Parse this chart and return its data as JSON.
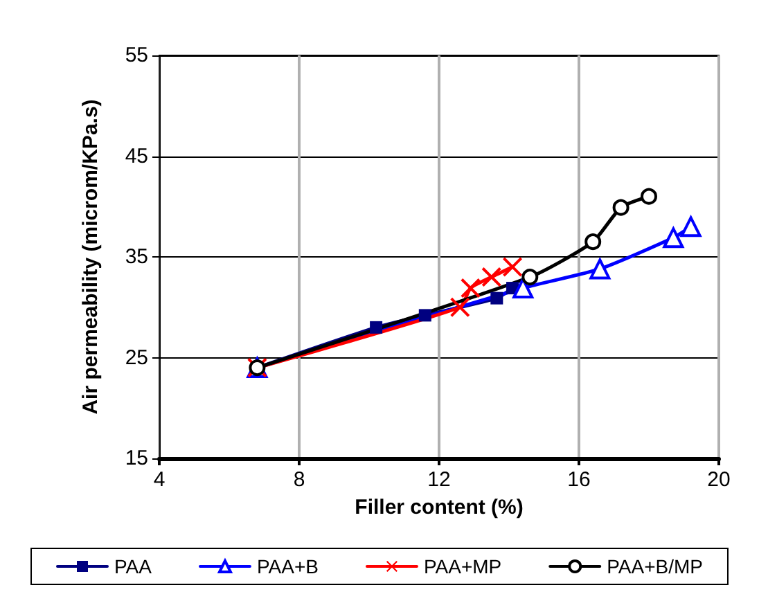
{
  "chart_data": {
    "type": "line",
    "xlabel": "Filler content (%)",
    "ylabel": "Air permeability (microm/KPa.s)",
    "xlim": [
      4,
      20
    ],
    "xticks": [
      4,
      8,
      12,
      16,
      20
    ],
    "ylim": [
      15,
      55
    ],
    "yticks": [
      15,
      25,
      35,
      45,
      55
    ],
    "grid": true,
    "legend": "bottom",
    "series": [
      {
        "name": "PAA",
        "color": "#000080",
        "marker": "square",
        "x": [
          6.8,
          10.2,
          11.6,
          13.65,
          14.1
        ],
        "values": [
          24,
          28,
          29.2,
          30.9,
          31.9
        ]
      },
      {
        "name": "PAA+B",
        "color": "#0000ff",
        "marker": "triangle",
        "x": [
          6.8,
          14.4,
          16.6,
          18.7,
          19.2
        ],
        "values": [
          24,
          31.9,
          33.8,
          36.9,
          38
        ]
      },
      {
        "name": "PAA+MP",
        "color": "#ff0000",
        "marker": "cross",
        "x": [
          6.8,
          12.6,
          12.9,
          13.5,
          14.1
        ],
        "values": [
          24,
          30,
          31.9,
          33,
          34
        ]
      },
      {
        "name": "PAA+B/MP",
        "color": "#000000",
        "marker": "circle",
        "x": [
          6.8,
          14.6,
          16.4,
          17.2,
          18
        ],
        "values": [
          24,
          33,
          36.5,
          39.9,
          41
        ]
      }
    ]
  }
}
